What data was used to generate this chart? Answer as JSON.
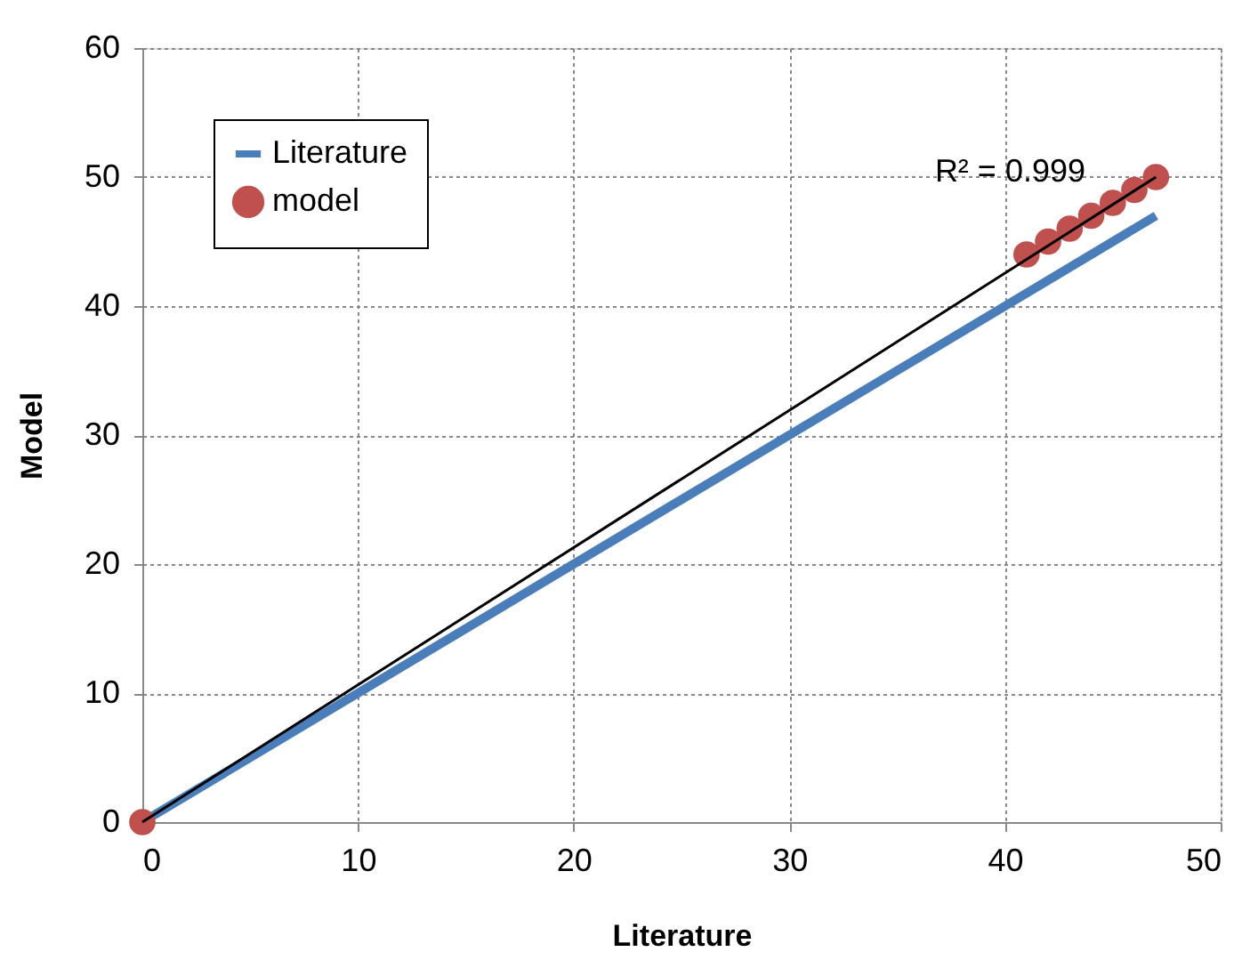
{
  "chart_data": {
    "type": "line",
    "xlabel": "Literature",
    "ylabel": "Model",
    "series": [
      {
        "name": "Literature",
        "color": "#4a7ebb",
        "x": [
          0,
          47
        ],
        "values": [
          0,
          47
        ]
      },
      {
        "name": "model",
        "type": "scatter",
        "color": "#c0504d",
        "x": [
          0,
          41,
          42,
          43,
          44,
          45,
          46,
          47
        ],
        "values": [
          0,
          44,
          45,
          46,
          47,
          48,
          49,
          50
        ]
      },
      {
        "color": "#000000",
        "x": [
          0,
          47
        ],
        "values": [
          0,
          50
        ]
      }
    ],
    "annotations": [
      "R² = 0.999"
    ],
    "xlim": [
      0,
      50
    ],
    "ylim": [
      0,
      60
    ],
    "xticks": [
      0,
      10,
      20,
      30,
      40,
      50
    ],
    "yticks": [
      0,
      10,
      20,
      30,
      40,
      50,
      60
    ],
    "grid": true,
    "legend": "top left",
    "line_style": "solid"
  }
}
